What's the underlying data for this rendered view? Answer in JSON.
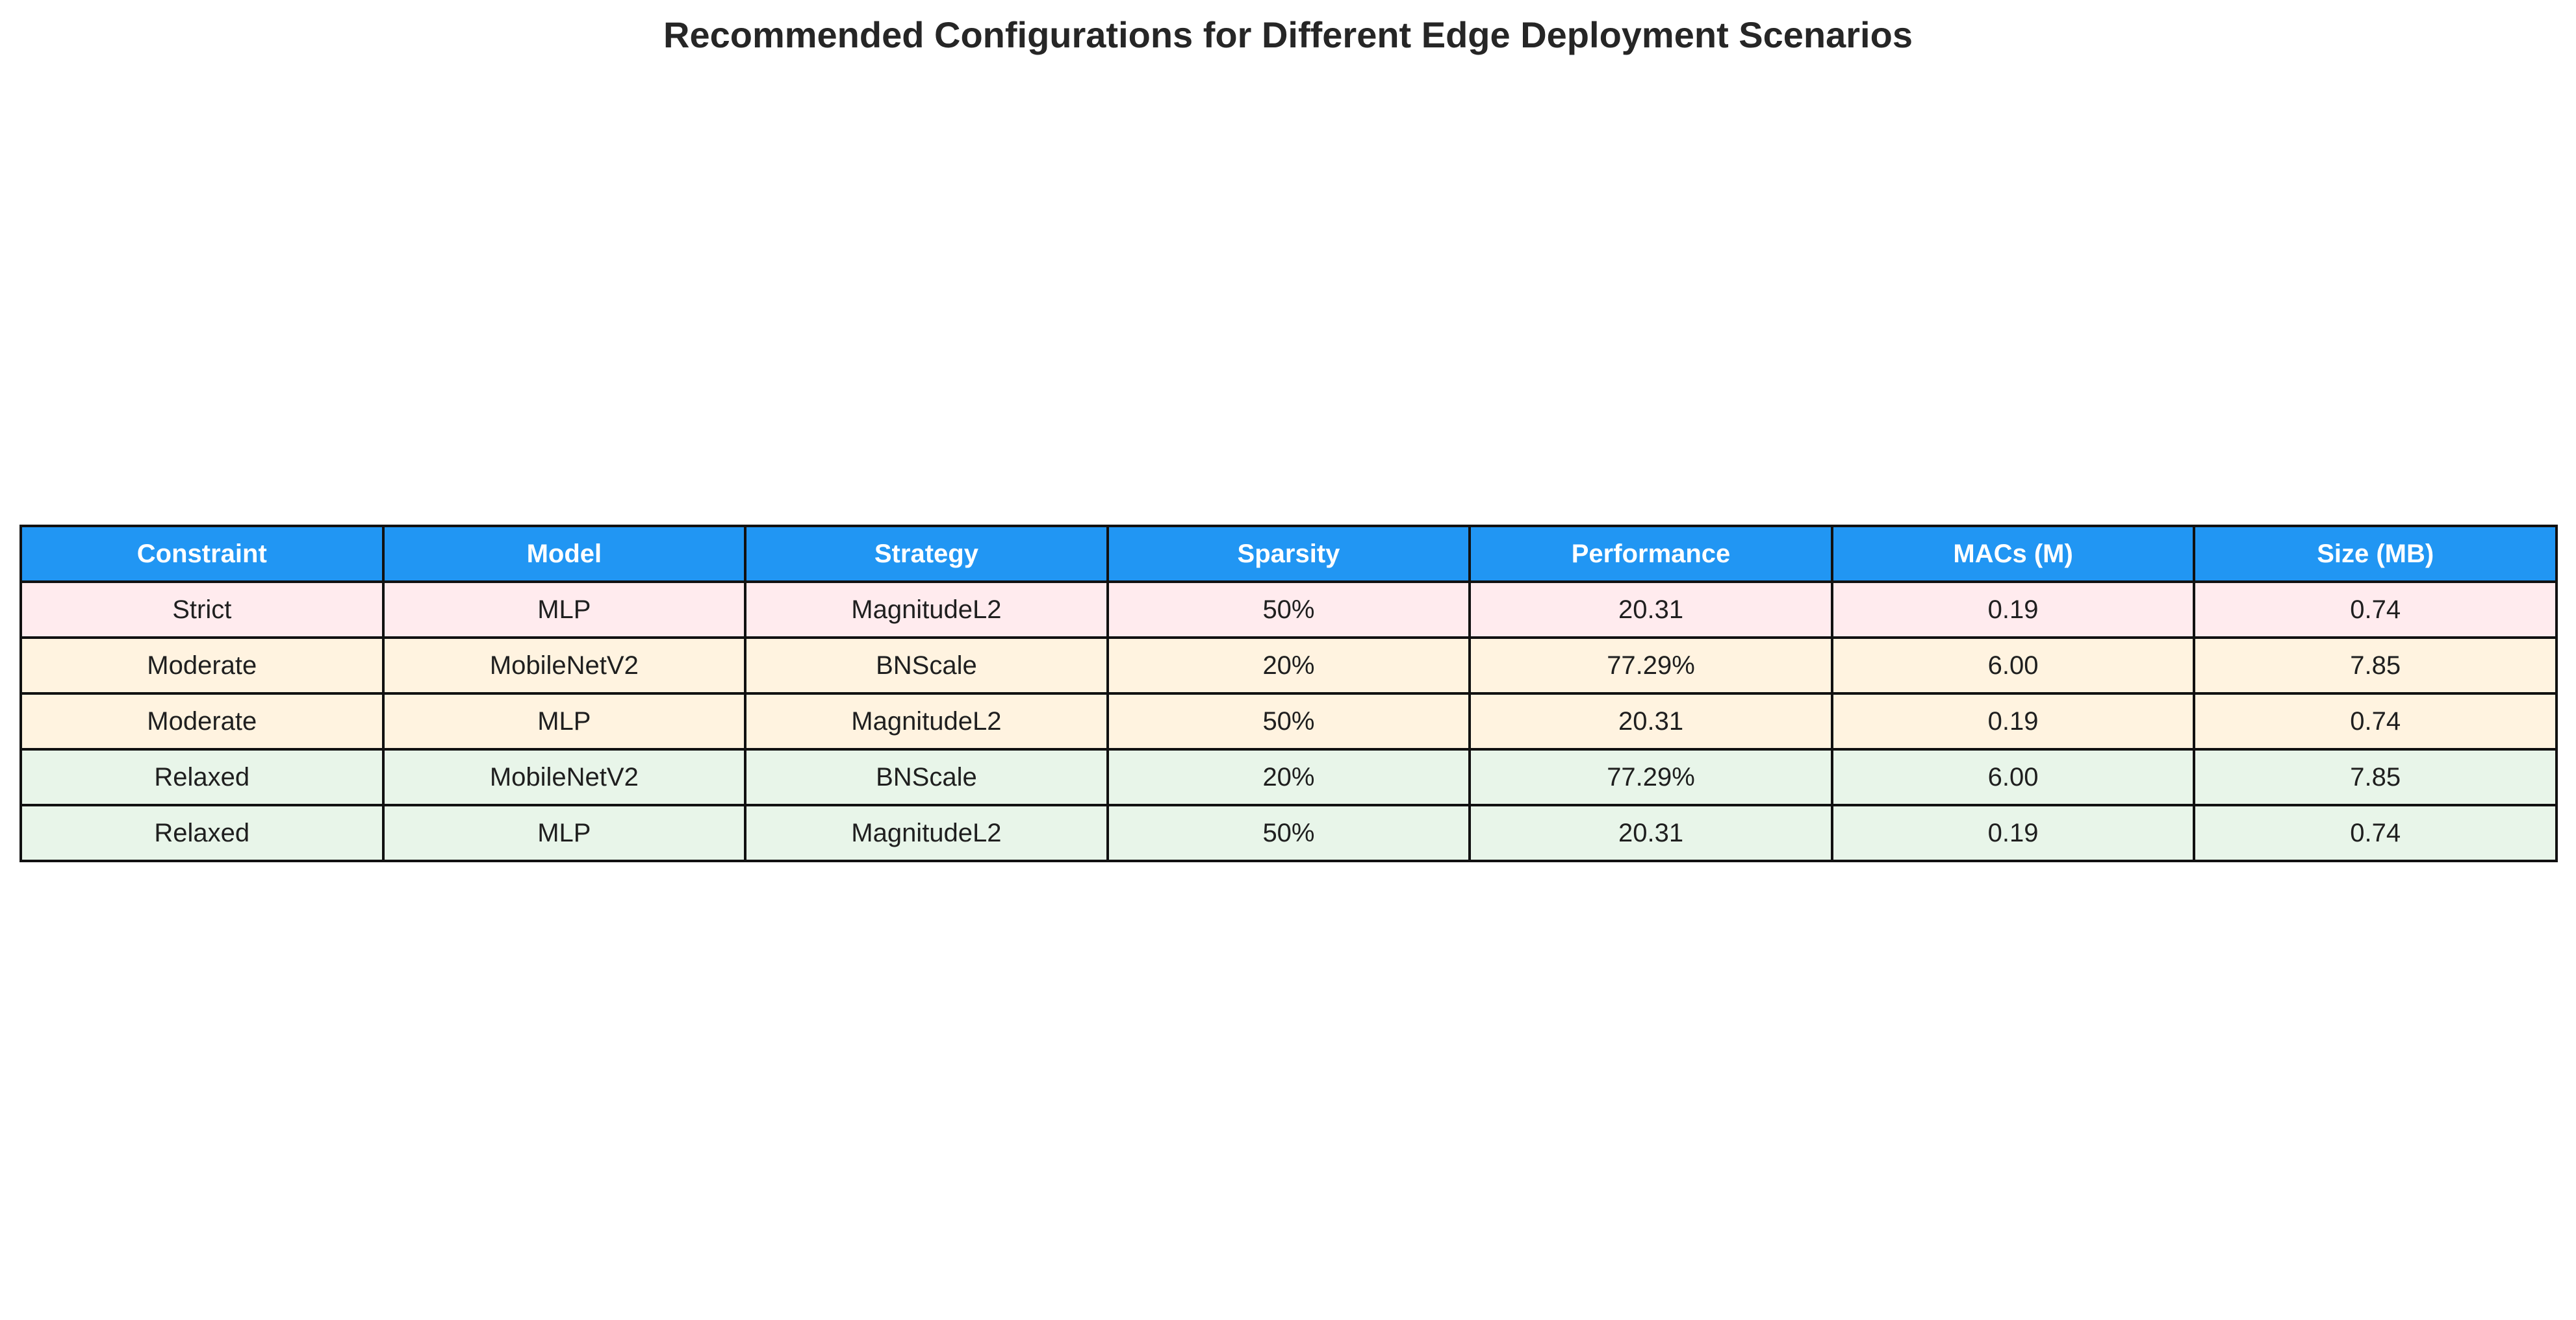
{
  "chart_data": {
    "type": "table",
    "title": "Recommended Configurations for Different Edge Deployment Scenarios",
    "columns": [
      "Constraint",
      "Model",
      "Strategy",
      "Sparsity",
      "Performance",
      "MACs (M)",
      "Size (MB)"
    ],
    "rows": [
      [
        "Strict",
        "MLP",
        "MagnitudeL2",
        "50%",
        "20.31",
        "0.19",
        "0.74"
      ],
      [
        "Moderate",
        "MobileNetV2",
        "BNScale",
        "20%",
        "77.29%",
        "6.00",
        "7.85"
      ],
      [
        "Moderate",
        "MLP",
        "MagnitudeL2",
        "50%",
        "20.31",
        "0.19",
        "0.74"
      ],
      [
        "Relaxed",
        "MobileNetV2",
        "BNScale",
        "20%",
        "77.29%",
        "6.00",
        "7.85"
      ],
      [
        "Relaxed",
        "MLP",
        "MagnitudeL2",
        "50%",
        "20.31",
        "0.19",
        "0.74"
      ]
    ]
  },
  "colors": {
    "header_background": "#2196f3",
    "header_text": "#ffffff",
    "grid_line": "#111111",
    "Strict": "#ffebee",
    "Moderate": "#fff3e0",
    "Relaxed": "#e8f5e9"
  }
}
